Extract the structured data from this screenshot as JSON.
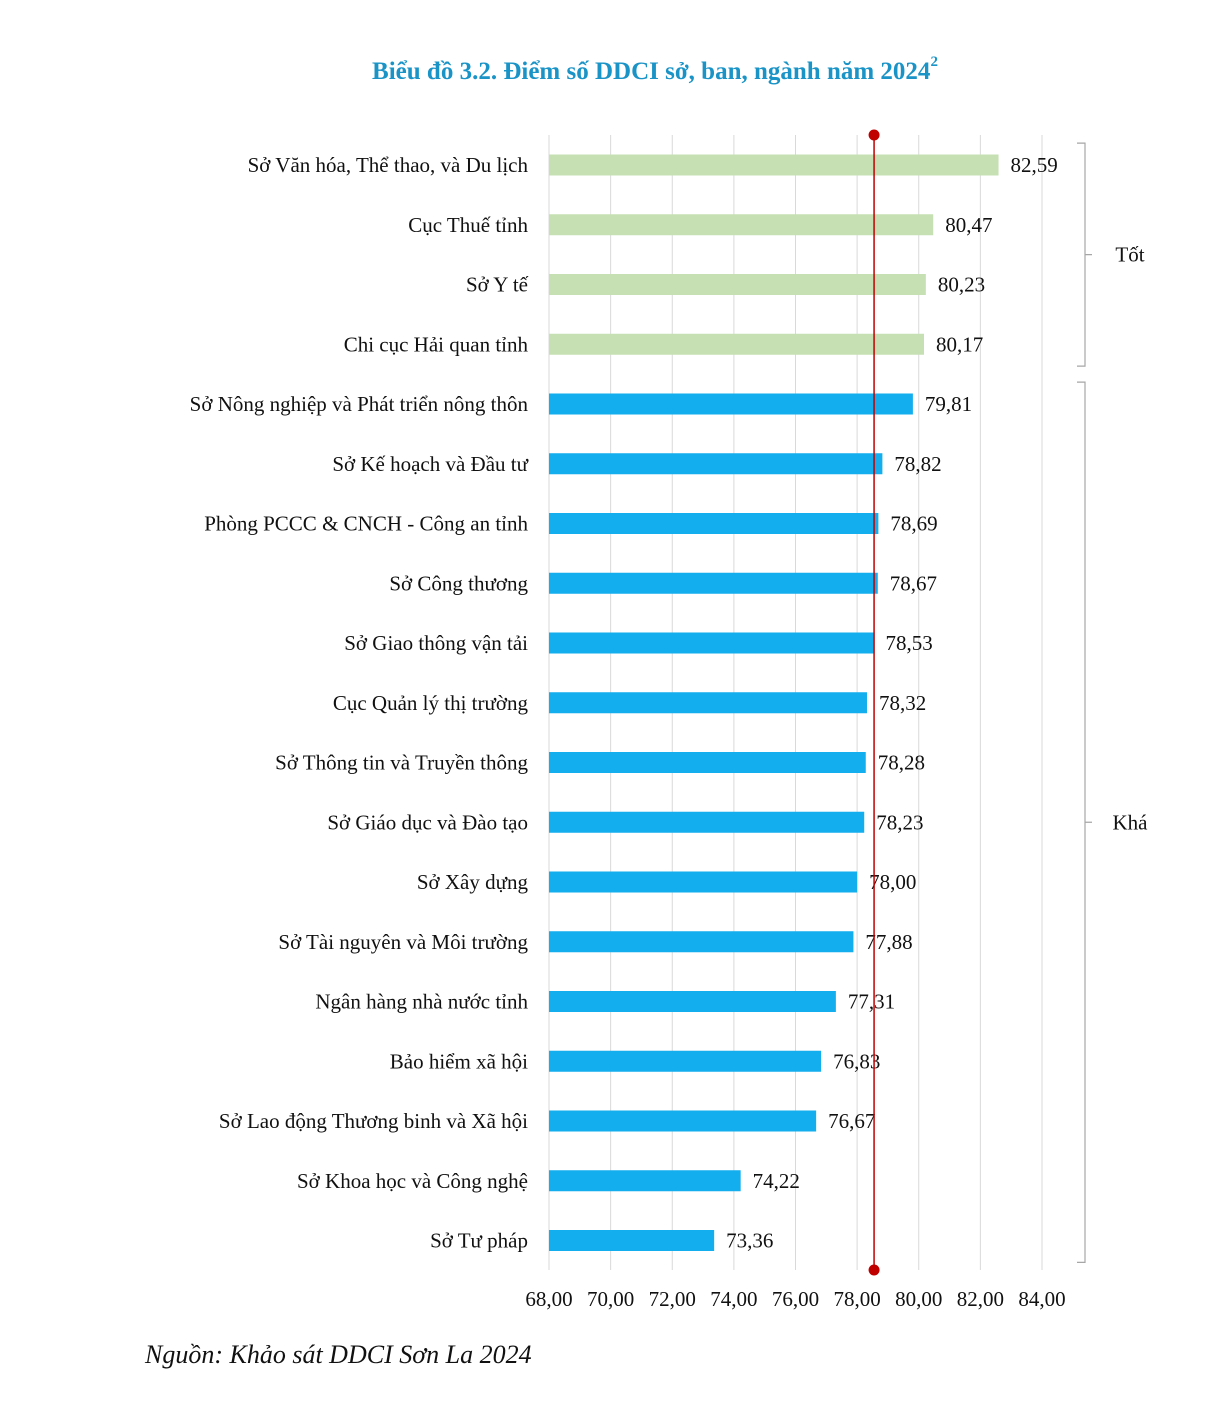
{
  "title": "Biểu đồ 3.2. Điểm số DDCI sở, ban, ngành năm 2024",
  "title_footnote": "2",
  "source": "Nguồn: Khảo sát DDCI Sơn La 2024",
  "colors": {
    "title": "#1a93c6",
    "good_bar": "#c6e0b4",
    "fair_bar": "#12aeee",
    "reference_line": "#c00000",
    "grid": "#d9d9d9"
  },
  "chart_data": {
    "type": "bar",
    "orientation": "horizontal",
    "title": "Biểu đồ 3.2. Điểm số DDCI sở, ban, ngành năm 2024",
    "xlim": [
      68,
      84
    ],
    "xticks": [
      "68,00",
      "70,00",
      "72,00",
      "74,00",
      "76,00",
      "78,00",
      "80,00",
      "82,00",
      "84,00"
    ],
    "grid": true,
    "reference_line_value": 78.55,
    "categories": [
      "Sở Văn hóa, Thể thao, và Du lịch",
      "Cục Thuế tỉnh",
      "Sở Y tế",
      "Chi cục Hải quan tỉnh",
      "Sở Nông nghiệp và Phát triển nông thôn",
      "Sở Kế hoạch và Đầu tư",
      "Phòng PCCC & CNCH - Công an tỉnh",
      "Sở Công thương",
      "Sở Giao thông vận tải",
      "Cục Quản lý thị trường",
      "Sở Thông tin và Truyền thông",
      "Sở Giáo dục và Đào tạo",
      "Sở Xây dựng",
      "Sở Tài nguyên và Môi trường",
      "Ngân hàng nhà nước tỉnh",
      "Bảo hiểm xã hội",
      "Sở Lao động Thương binh và Xã hội",
      "Sở Khoa học và Công nghệ",
      "Sở Tư pháp"
    ],
    "values": [
      82.59,
      80.47,
      80.23,
      80.17,
      79.81,
      78.82,
      78.69,
      78.67,
      78.53,
      78.32,
      78.28,
      78.23,
      78.0,
      77.88,
      77.31,
      76.83,
      76.67,
      74.22,
      73.36
    ],
    "value_labels": [
      "82,59",
      "80,47",
      "80,23",
      "80,17",
      "79,81",
      "78,82",
      "78,69",
      "78,67",
      "78,53",
      "78,32",
      "78,28",
      "78,23",
      "78,00",
      "77,88",
      "77,31",
      "76,83",
      "76,67",
      "74,22",
      "73,36"
    ],
    "groups": [
      {
        "name": "Tốt",
        "count": 4,
        "color": "#c6e0b4"
      },
      {
        "name": "Khá",
        "count": 15,
        "color": "#12aeee"
      }
    ]
  }
}
